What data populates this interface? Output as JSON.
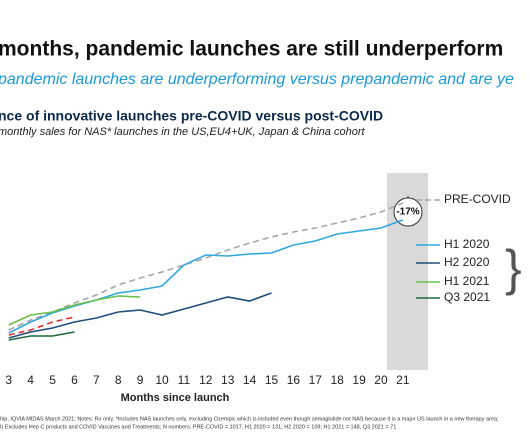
{
  "chart_data": {
    "type": "line",
    "title": "months, pandemic launches are still underperform",
    "subtitle": "pandemic launches are underperforming versus prepandemic and are ye",
    "chart_title": "nce of innovative launches pre-COVID versus post-COVID",
    "chart_subtitle": "monthly sales for NAS* launches in the US,EU4+UK, Japan & China cohort",
    "x_label": "Months since launch",
    "annotation": "-17%",
    "footnote": [
      "hip, IQVIA MIDAS March 2021; Notes: Rx only, *Includes NAS launches only, excluding Ozempic which is included even though semaglutide not NAS because it is a major US launch in a new therapy area;",
      "I) Excludes Hep C products and COVID Vaccines and Treatments; N numbers: PRE-COVID = 1017, H1 2020 = 131; H2 2020 = 109; H1 2021 = 148, Q3 2021 = 71"
    ],
    "x": [
      3,
      4,
      5,
      6,
      7,
      8,
      9,
      10,
      11,
      12,
      13,
      14,
      15,
      16,
      17,
      18,
      19,
      20,
      21
    ],
    "xlim": [
      2.6,
      21.6
    ],
    "xticks": [
      3,
      4,
      5,
      6,
      7,
      8,
      9,
      10,
      11,
      12,
      13,
      14,
      15,
      16,
      17,
      18,
      19,
      20,
      21
    ],
    "ylim": [
      0,
      100
    ],
    "series": [
      {
        "name": "PRE-COVID",
        "color": "#a6a6a6",
        "dashed": true,
        "values": [
          20,
          25,
          29,
          33.5,
          37.5,
          42.5,
          46,
          49,
          52.5,
          56,
          60,
          63.5,
          66.5,
          69,
          71,
          73.5,
          76,
          79,
          83.5
        ]
      },
      {
        "name": "H1 2020",
        "color": "#2fa8e0",
        "dashed": false,
        "values": [
          18.5,
          24,
          28.5,
          32,
          35,
          38.5,
          40,
          42,
          52.5,
          57.5,
          57,
          58,
          58.5,
          62.5,
          64.5,
          68,
          69.5,
          71,
          75
        ]
      },
      {
        "name": "H2 2020",
        "color": "#1f4e79",
        "dashed": false,
        "values": [
          16,
          19,
          21,
          24,
          26,
          29,
          30,
          27.5,
          30.5,
          33.5,
          36.5,
          34.5,
          38.5,
          null,
          null,
          null,
          null,
          null,
          null
        ]
      },
      {
        "name": "H1 2021",
        "color": "#6cc04a",
        "dashed": false,
        "values": [
          22.5,
          27.5,
          29,
          32.5,
          35,
          37,
          36.5,
          null,
          null,
          null,
          null,
          null,
          null,
          null,
          null,
          null,
          null,
          null,
          null
        ]
      },
      {
        "name": "Q3 2021",
        "color": "#1e6b3a",
        "dashed": false,
        "values": [
          15,
          17,
          17,
          19,
          null,
          null,
          null,
          null,
          null,
          null,
          null,
          null,
          null,
          null,
          null,
          null,
          null,
          null,
          null
        ]
      },
      {
        "color": "#e0322d",
        "dashed": true,
        "legend": false,
        "values": [
          17.5,
          20,
          24,
          26.5,
          null,
          null,
          null,
          null,
          null,
          null,
          null,
          null,
          null,
          null,
          null,
          null,
          null,
          null,
          null
        ]
      }
    ]
  }
}
